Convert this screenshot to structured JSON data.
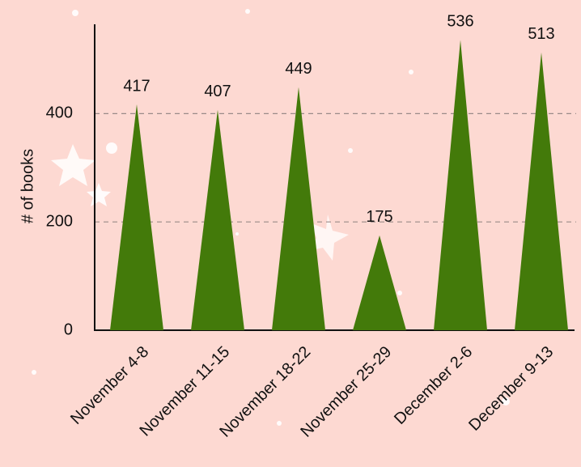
{
  "chart_data": {
    "type": "triangle-bar",
    "y_label": "# of books",
    "categories": [
      "November 4-8",
      "November 11-15",
      "November 18-22",
      "November 25-29",
      "December 2-6",
      "December 9-13"
    ],
    "values": [
      417,
      407,
      449,
      175,
      536,
      513
    ],
    "color": "#437a0a",
    "ylim": [
      0,
      565
    ],
    "yticks": [
      0,
      200,
      400
    ],
    "grid": true
  }
}
